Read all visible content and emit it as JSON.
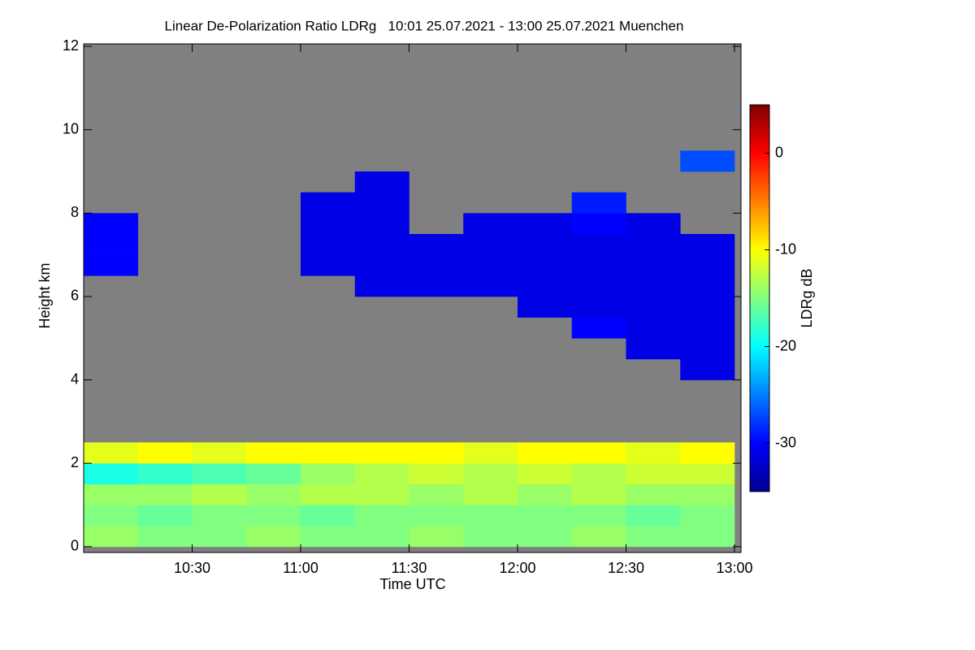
{
  "chart_data": {
    "type": "heatmap",
    "title": "Linear De-Polarization Ratio LDRg   10:01 25.07.2021 - 13:00 25.07.2021 Muenchen",
    "x_label": "Time UTC",
    "y_label": "Height km",
    "colorbar_label": "LDRg dB",
    "xlim": [
      10.0,
      13.03
    ],
    "ylim": [
      -0.14,
      12.06
    ],
    "zlim": [
      -35,
      5
    ],
    "xticks": [
      {
        "value": 10.5,
        "label": "10:30"
      },
      {
        "value": 11,
        "label": "11:00"
      },
      {
        "value": 11.5,
        "label": "11:30"
      },
      {
        "value": 12,
        "label": "12:00"
      },
      {
        "value": 12.5,
        "label": "12:30"
      },
      {
        "value": 13,
        "label": "13:00"
      }
    ],
    "yticks": [
      0,
      2,
      4,
      6,
      8,
      10,
      12
    ],
    "zticks": [
      0,
      -10,
      -20,
      -30
    ],
    "background": "#808080",
    "x_bins": [
      10.0,
      10.25,
      10.5,
      10.75,
      11.0,
      11.25,
      11.5,
      11.75,
      12.0,
      12.25,
      12.5,
      12.75,
      13.0
    ],
    "y_bins": [
      0,
      0.5,
      1,
      1.5,
      2,
      2.5,
      3,
      3.5,
      4,
      4.5,
      5,
      5.5,
      6,
      6.5,
      7,
      7.5,
      8,
      8.5,
      9,
      9.5,
      10,
      10.5,
      11,
      11.5,
      12
    ],
    "z": [
      [
        -14,
        -15,
        -15,
        -14,
        -15,
        -15,
        -14,
        -15,
        -15,
        -14,
        -15,
        -15
      ],
      [
        -15,
        -16,
        -15,
        -15,
        -16,
        -15,
        -15,
        -15,
        -15,
        -15,
        -16,
        -15
      ],
      [
        -14,
        -14,
        -13,
        -14,
        -13,
        -13,
        -14,
        -13,
        -14,
        -13,
        -14,
        -14
      ],
      [
        -19,
        -18,
        -17,
        -16,
        -14,
        -13,
        -12,
        -13,
        -12,
        -13,
        -12,
        -12
      ],
      [
        -11,
        -10,
        -11,
        -10,
        -10,
        -10,
        -10,
        -11,
        -10,
        -10,
        -11,
        -10
      ],
      [
        null,
        null,
        null,
        null,
        null,
        null,
        null,
        null,
        null,
        null,
        null,
        null
      ],
      [
        null,
        null,
        null,
        null,
        null,
        null,
        null,
        null,
        null,
        null,
        null,
        null
      ],
      [
        null,
        null,
        null,
        null,
        null,
        null,
        null,
        null,
        null,
        null,
        null,
        null
      ],
      [
        null,
        null,
        null,
        null,
        null,
        null,
        null,
        null,
        null,
        null,
        null,
        -31
      ],
      [
        null,
        null,
        null,
        null,
        null,
        null,
        null,
        null,
        null,
        null,
        -31,
        -31
      ],
      [
        null,
        null,
        null,
        null,
        null,
        null,
        null,
        null,
        null,
        -30,
        -31,
        -31
      ],
      [
        null,
        null,
        null,
        null,
        null,
        null,
        null,
        null,
        -31,
        -31,
        -31,
        -31
      ],
      [
        null,
        null,
        null,
        null,
        null,
        -31,
        -31,
        -31,
        -31,
        -31,
        -31,
        -31
      ],
      [
        -30,
        null,
        null,
        null,
        -31,
        -31,
        -31,
        -31,
        -31,
        -31,
        -31,
        -31
      ],
      [
        -30,
        null,
        null,
        null,
        -31,
        -31,
        -31,
        -31,
        -31,
        -31,
        -31,
        -31
      ],
      [
        -30,
        null,
        null,
        null,
        -31,
        -31,
        null,
        -31,
        -31,
        -30,
        -31,
        null
      ],
      [
        null,
        null,
        null,
        null,
        -31,
        -31,
        null,
        null,
        null,
        -29,
        null,
        null
      ],
      [
        null,
        null,
        null,
        null,
        null,
        -31,
        null,
        null,
        null,
        null,
        null,
        null
      ],
      [
        null,
        null,
        null,
        null,
        null,
        null,
        null,
        null,
        null,
        null,
        null,
        -27
      ],
      [
        null,
        null,
        null,
        null,
        null,
        null,
        null,
        null,
        null,
        null,
        null,
        null
      ],
      [
        null,
        null,
        null,
        null,
        null,
        null,
        null,
        null,
        null,
        null,
        null,
        null
      ],
      [
        null,
        null,
        null,
        null,
        null,
        null,
        null,
        null,
        null,
        null,
        null,
        null
      ],
      [
        null,
        null,
        null,
        null,
        null,
        null,
        null,
        null,
        null,
        null,
        null,
        null
      ],
      [
        null,
        null,
        null,
        null,
        null,
        null,
        null,
        null,
        null,
        null,
        null,
        null
      ]
    ]
  }
}
